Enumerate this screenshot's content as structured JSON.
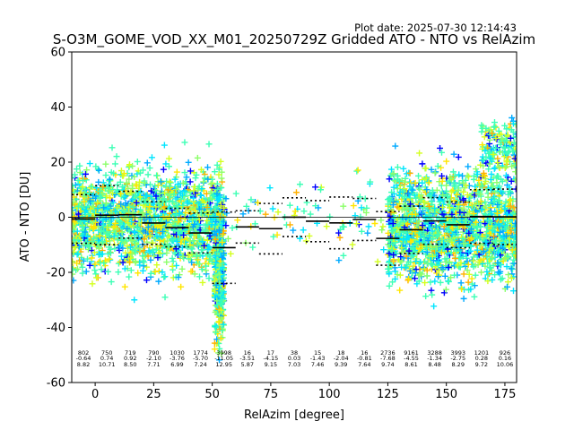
{
  "chart_data": {
    "type": "scatter",
    "title": "S-O3M_GOME_VOD_XX_M01_20250729Z Gridded ATO - NTO vs RelAzim",
    "subtitle": "Plot date: 2025-07-30 12:14:43",
    "xlabel": "RelAzim [degree]",
    "ylabel": "ATO - NTO [DU]",
    "xlim": [
      -10,
      180
    ],
    "ylim": [
      -60,
      60
    ],
    "xticks": [
      0,
      25,
      50,
      75,
      100,
      125,
      150,
      175
    ],
    "yticks": [
      -60,
      -40,
      -20,
      0,
      20,
      40,
      60
    ],
    "grid": false,
    "colors": [
      "#0000ff",
      "#00aaff",
      "#00e5ff",
      "#3dffb5",
      "#8cff6a",
      "#d4ff1f",
      "#ffe600",
      "#ffb000"
    ],
    "clusters": [
      {
        "x": [
          -10,
          55
        ],
        "y": [
          -30,
          28
        ],
        "count": 1700
      },
      {
        "x": [
          51,
          55
        ],
        "y": [
          -58,
          18
        ],
        "count": 380
      },
      {
        "x": [
          55,
          125
        ],
        "y": [
          -22,
          20
        ],
        "count": 90
      },
      {
        "x": [
          125,
          180
        ],
        "y": [
          -35,
          28
        ],
        "count": 1650
      },
      {
        "x": [
          165,
          180
        ],
        "y": [
          10,
          40
        ],
        "count": 150
      }
    ],
    "bins": [
      {
        "x": -5,
        "n": "802",
        "mean": "-0.64",
        "std": "8.82"
      },
      {
        "x": 5,
        "n": "750",
        "mean": "0.74",
        "std": "10.71"
      },
      {
        "x": 15,
        "n": "719",
        "mean": "0.92",
        "std": "8.50"
      },
      {
        "x": 25,
        "n": "790",
        "mean": "-2.10",
        "std": "7.71"
      },
      {
        "x": 35,
        "n": "1030",
        "mean": "-3.76",
        "std": "6.99"
      },
      {
        "x": 45,
        "n": "1774",
        "mean": "-5.70",
        "std": "7.24"
      },
      {
        "x": 55,
        "n": "3998",
        "mean": "-11.05",
        "std": "12.95"
      },
      {
        "x": 65,
        "n": "16",
        "mean": "-3.51",
        "std": "5.87"
      },
      {
        "x": 75,
        "n": "17",
        "mean": "-4.15",
        "std": "9.15"
      },
      {
        "x": 85,
        "n": "38",
        "mean": "0.03",
        "std": "7.03"
      },
      {
        "x": 95,
        "n": "15",
        "mean": "-1.43",
        "std": "7.46"
      },
      {
        "x": 105,
        "n": "18",
        "mean": "-2.04",
        "std": "9.39"
      },
      {
        "x": 115,
        "n": "16",
        "mean": "-0.81",
        "std": "7.64"
      },
      {
        "x": 125,
        "n": "2736",
        "mean": "-7.68",
        "std": "9.74"
      },
      {
        "x": 135,
        "n": "9161",
        "mean": "-4.55",
        "std": "8.61"
      },
      {
        "x": 145,
        "n": "3288",
        "mean": "-1.34",
        "std": "8.48"
      },
      {
        "x": 155,
        "n": "3993",
        "mean": "-2.75",
        "std": "8.29"
      },
      {
        "x": 165,
        "n": "1201",
        "mean": "0.28",
        "std": "9.72"
      },
      {
        "x": 175,
        "n": "926",
        "mean": "0.16",
        "std": "10.06"
      }
    ]
  }
}
